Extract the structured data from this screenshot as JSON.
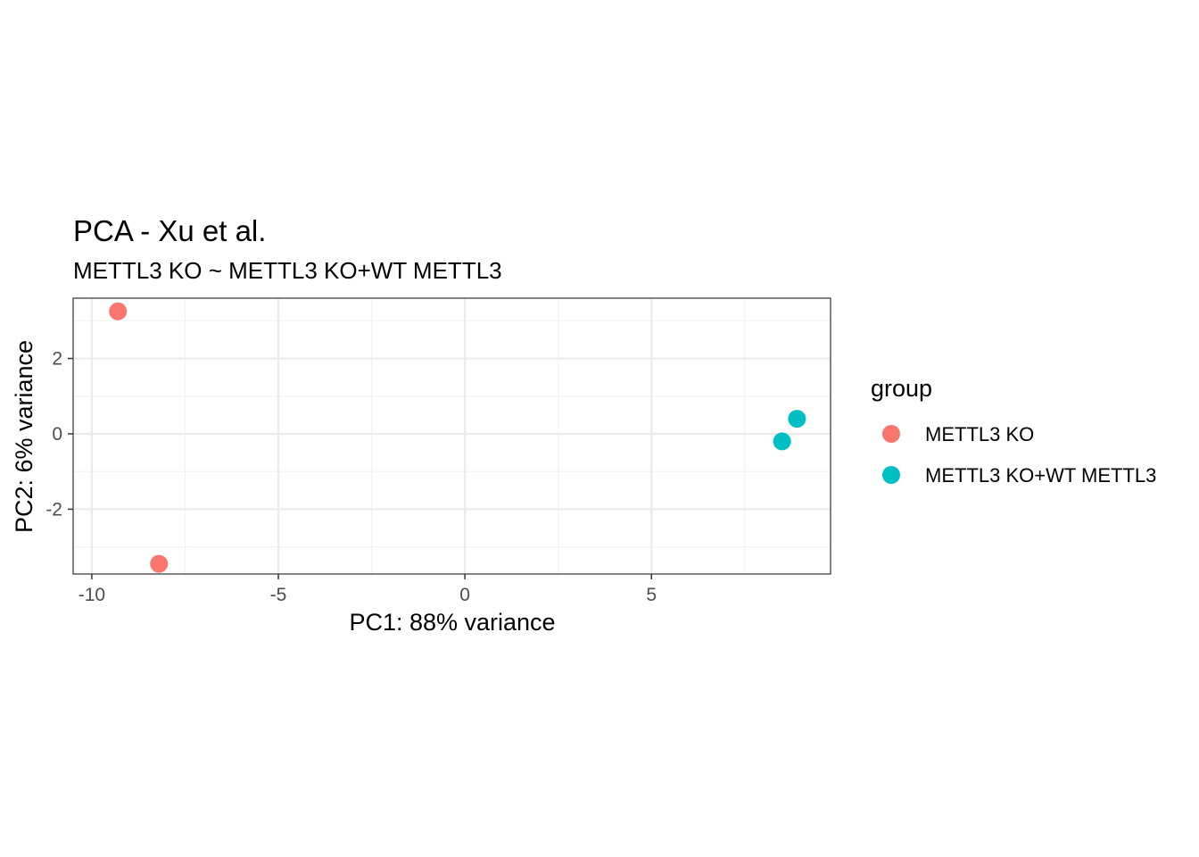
{
  "chart_data": {
    "type": "scatter",
    "title": "PCA - Xu et al.",
    "subtitle": "METTL3 KO ~ METTL3 KO+WT METTL3",
    "xlabel": "PC1: 88% variance",
    "ylabel": "PC2: 6% variance",
    "xlim": [
      -10.5,
      9.8
    ],
    "ylim": [
      -3.72,
      3.6
    ],
    "x_ticks": [
      -10,
      -5,
      0,
      5
    ],
    "x_tick_labels": [
      "-10",
      "-5",
      "0",
      "5"
    ],
    "y_ticks": [
      -2,
      0,
      2
    ],
    "y_tick_labels": [
      "-2",
      "0",
      "2"
    ],
    "grid": true,
    "legend": {
      "title": "group",
      "position": "right"
    },
    "series": [
      {
        "name": "METTL3 KO",
        "color": "#F8766D",
        "points": [
          {
            "x": -9.3,
            "y": 3.25
          },
          {
            "x": -8.2,
            "y": -3.45
          }
        ]
      },
      {
        "name": "METTL3 KO+WT METTL3",
        "color": "#00BFC4",
        "points": [
          {
            "x": 8.5,
            "y": -0.2
          },
          {
            "x": 8.9,
            "y": 0.4
          }
        ]
      }
    ]
  }
}
